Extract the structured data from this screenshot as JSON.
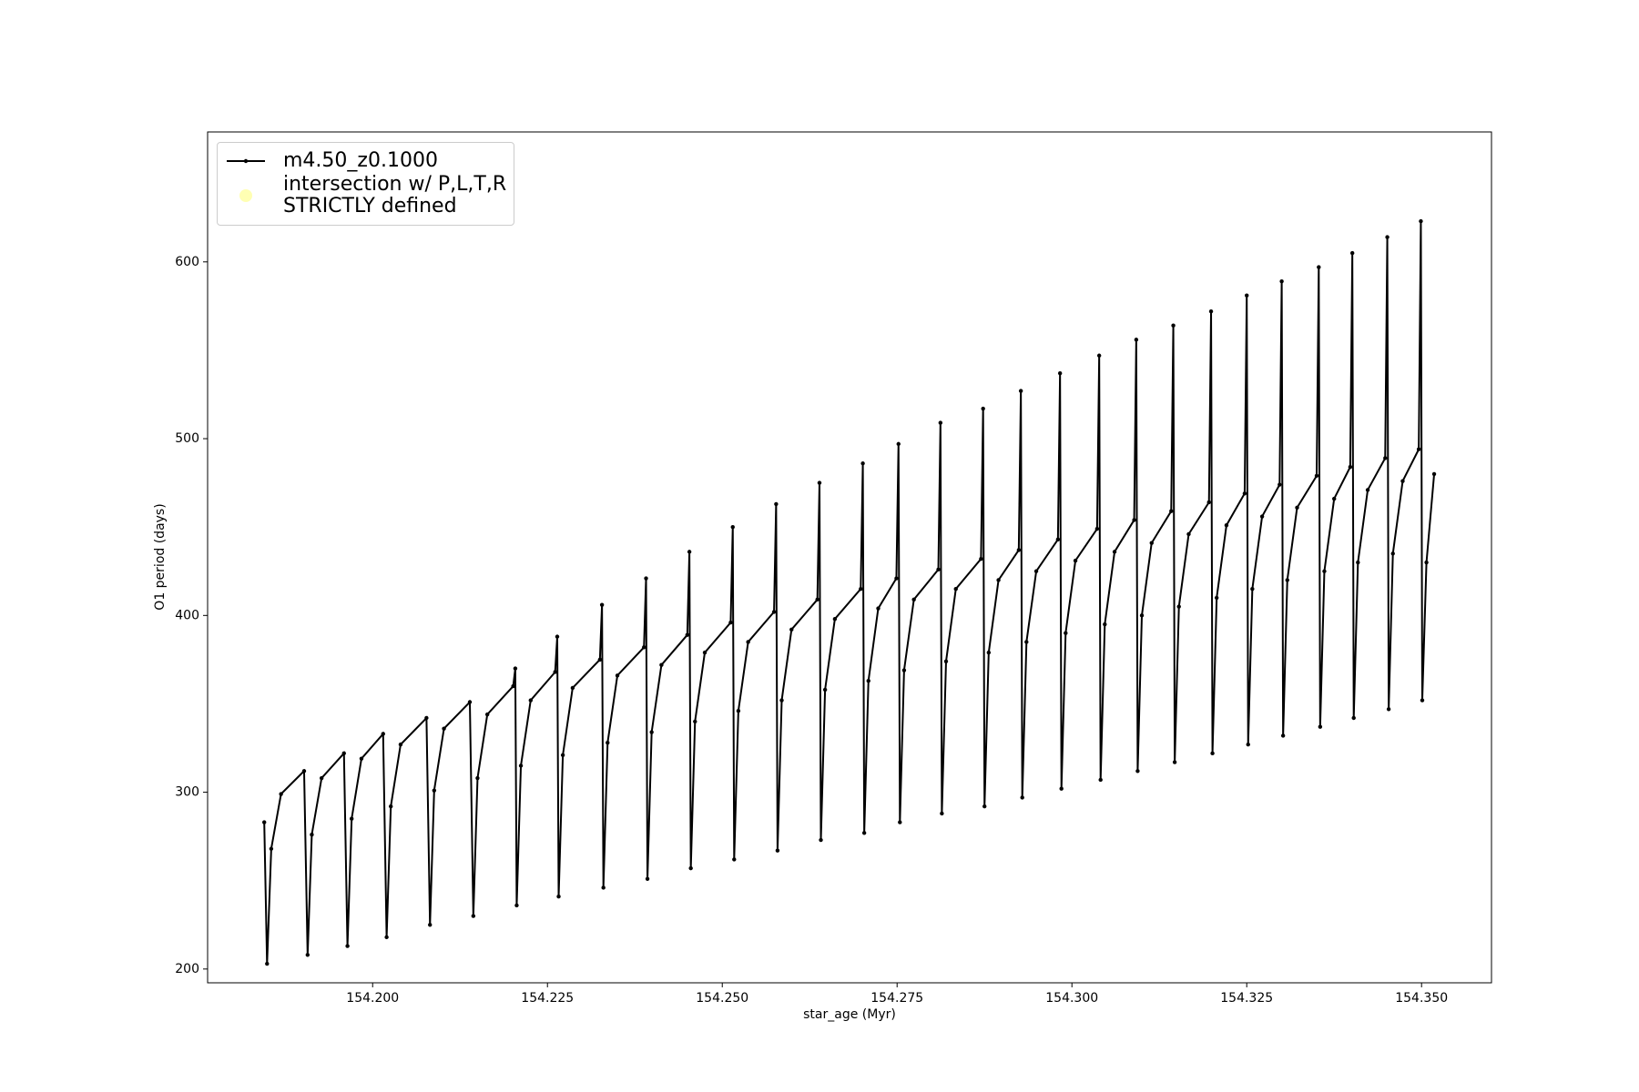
{
  "chart_data": {
    "type": "line",
    "xlabel": "star_age (Myr)",
    "ylabel": "O1 period (days)",
    "xlim": [
      154.1764,
      154.36
    ],
    "ylim": [
      192.2,
      673.5
    ],
    "xticks": [
      {
        "value": 154.2,
        "label": "154.200"
      },
      {
        "value": 154.225,
        "label": "154.225"
      },
      {
        "value": 154.25,
        "label": "154.250"
      },
      {
        "value": 154.275,
        "label": "154.275"
      },
      {
        "value": 154.3,
        "label": "154.300"
      },
      {
        "value": 154.325,
        "label": "154.325"
      },
      {
        "value": 154.35,
        "label": "154.350"
      }
    ],
    "yticks": [
      200,
      300,
      400,
      500,
      600
    ],
    "legend": "upper left",
    "series": [
      {
        "name": "m4.50_z0.1000",
        "color": "#000000",
        "marker": true,
        "x": [
          154.1845,
          154.1849,
          154.1855,
          154.1869,
          154.1902,
          154.1907,
          154.1913,
          154.1927,
          154.1959,
          154.1964,
          154.197,
          154.1984,
          154.2015,
          154.202,
          154.2026,
          154.204,
          154.2077,
          154.2082,
          154.2088,
          154.2102,
          154.2139,
          154.2144,
          154.215,
          154.2164,
          154.2201,
          154.2204,
          154.2206,
          154.2212,
          154.2226,
          154.2261,
          154.2264,
          154.2266,
          154.2272,
          154.2286,
          154.2325,
          154.2328,
          154.233,
          154.2336,
          154.235,
          154.2388,
          154.2391,
          154.2393,
          154.2399,
          154.2413,
          154.245,
          154.2453,
          154.2455,
          154.2461,
          154.2475,
          154.2512,
          154.2515,
          154.2517,
          154.2523,
          154.2537,
          154.2574,
          154.2577,
          154.2579,
          154.2585,
          154.2599,
          154.2636,
          154.2639,
          154.2641,
          154.2647,
          154.2661,
          154.2698,
          154.2701,
          154.2703,
          154.2709,
          154.2723,
          154.2749,
          154.2752,
          154.2754,
          154.276,
          154.2774,
          154.2809,
          154.2812,
          154.2814,
          154.282,
          154.2834,
          154.287,
          154.2873,
          154.2875,
          154.2881,
          154.2895,
          154.2924,
          154.2927,
          154.2929,
          154.2935,
          154.2949,
          154.298,
          154.2983,
          154.2985,
          154.2991,
          154.3005,
          154.3036,
          154.3039,
          154.3041,
          154.3047,
          154.3061,
          154.3089,
          154.3092,
          154.3094,
          154.31,
          154.3114,
          154.3142,
          154.3145,
          154.3147,
          154.3153,
          154.3167,
          154.3196,
          154.3199,
          154.3201,
          154.3207,
          154.3221,
          154.3247,
          154.325,
          154.3252,
          154.3258,
          154.3272,
          154.3297,
          154.33,
          154.3302,
          154.3308,
          154.3322,
          154.335,
          154.3353,
          154.3355,
          154.3361,
          154.3375,
          154.3398,
          154.3401,
          154.3403,
          154.3409,
          154.3423,
          154.3448,
          154.3451,
          154.3453,
          154.3459,
          154.3473,
          154.3496,
          154.3499,
          154.3501,
          154.3507,
          154.3518
        ],
        "values": [
          283,
          203,
          268,
          299,
          312,
          208,
          276,
          308,
          322,
          213,
          285,
          319,
          333,
          218,
          292,
          327,
          342,
          225,
          301,
          336,
          351,
          230,
          308,
          344,
          360,
          370,
          236,
          315,
          352,
          368,
          388,
          241,
          321,
          359,
          375,
          406,
          246,
          328,
          366,
          382,
          421,
          251,
          334,
          372,
          389,
          436,
          257,
          340,
          379,
          396,
          450,
          262,
          346,
          385,
          402,
          463,
          267,
          352,
          392,
          409,
          475,
          273,
          358,
          398,
          415,
          486,
          277,
          363,
          404,
          421,
          497,
          283,
          369,
          409,
          426,
          509,
          288,
          374,
          415,
          432,
          517,
          292,
          379,
          420,
          437,
          527,
          297,
          385,
          425,
          443,
          537,
          302,
          390,
          431,
          449,
          547,
          307,
          395,
          436,
          454,
          556,
          312,
          400,
          441,
          459,
          564,
          317,
          405,
          446,
          464,
          572,
          322,
          410,
          451,
          469,
          581,
          327,
          415,
          456,
          474,
          589,
          332,
          420,
          461,
          479,
          597,
          337,
          425,
          466,
          484,
          605,
          342,
          430,
          471,
          489,
          614,
          347,
          435,
          476,
          494,
          623,
          352,
          430,
          480
        ]
      },
      {
        "name": "intersection w/ P,L,T,R\nSTRICTLY defined",
        "color": "#ffffb3",
        "type": "scatter",
        "x": [],
        "values": []
      }
    ]
  }
}
